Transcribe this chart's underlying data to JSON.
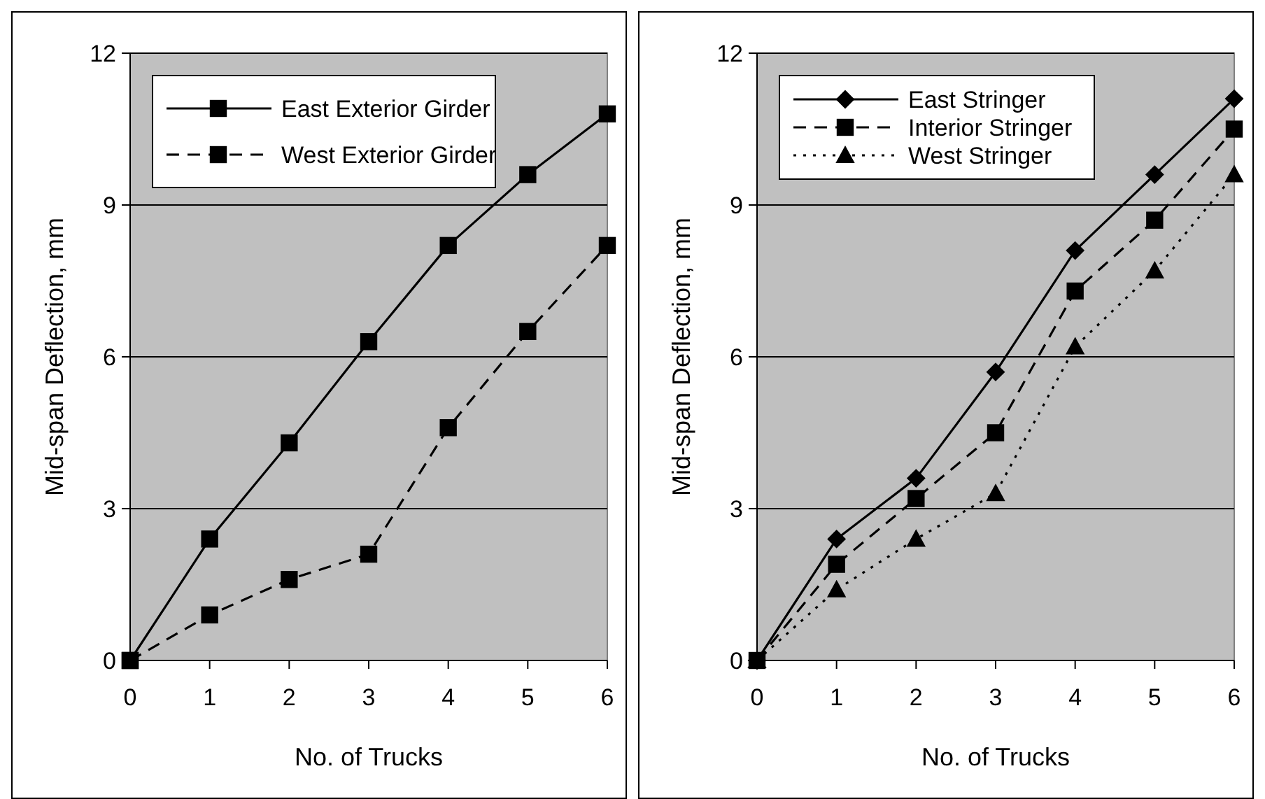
{
  "chart_data": [
    {
      "type": "line",
      "xlabel": "No. of Trucks",
      "ylabel": "Mid-span Deflection, mm",
      "x": [
        0,
        1,
        2,
        3,
        4,
        5,
        6
      ],
      "xlim": [
        0,
        6
      ],
      "xticks": [
        0,
        1,
        2,
        3,
        4,
        5,
        6
      ],
      "ylim": [
        0,
        12
      ],
      "yticks": [
        0,
        3,
        6,
        9,
        12
      ],
      "grid": "y",
      "legend": "top left",
      "series": [
        {
          "name": "East Exterior Girder",
          "color": "#000000",
          "values": [
            0,
            2.4,
            4.3,
            6.3,
            8.2,
            9.6,
            10.8
          ],
          "marker": "square",
          "line_style": "solid"
        },
        {
          "name": "West Exterior Girder",
          "color": "#000000",
          "values": [
            0,
            0.9,
            1.6,
            2.1,
            4.6,
            6.5,
            8.2
          ],
          "marker": "square",
          "line_style": "dashed"
        }
      ]
    },
    {
      "type": "line",
      "xlabel": "No. of Trucks",
      "ylabel": "Mid-span Deflection, mm",
      "x": [
        0,
        1,
        2,
        3,
        4,
        5,
        6
      ],
      "xlim": [
        0,
        6
      ],
      "xticks": [
        0,
        1,
        2,
        3,
        4,
        5,
        6
      ],
      "ylim": [
        0,
        12
      ],
      "yticks": [
        0,
        3,
        6,
        9,
        12
      ],
      "grid": "y",
      "legend": "top left",
      "series": [
        {
          "name": "East Stringer",
          "color": "#000000",
          "values": [
            0,
            2.4,
            3.6,
            5.7,
            8.1,
            9.6,
            11.1
          ],
          "marker": "diamond",
          "line_style": "solid"
        },
        {
          "name": "Interior Stringer",
          "color": "#000000",
          "values": [
            0,
            1.9,
            3.2,
            4.5,
            7.3,
            8.7,
            10.5
          ],
          "marker": "square",
          "line_style": "dashed"
        },
        {
          "name": "West Stringer",
          "color": "#000000",
          "values": [
            0,
            1.4,
            2.4,
            3.3,
            6.2,
            7.7,
            9.6
          ],
          "marker": "triangle",
          "line_style": "dotted"
        }
      ]
    }
  ]
}
